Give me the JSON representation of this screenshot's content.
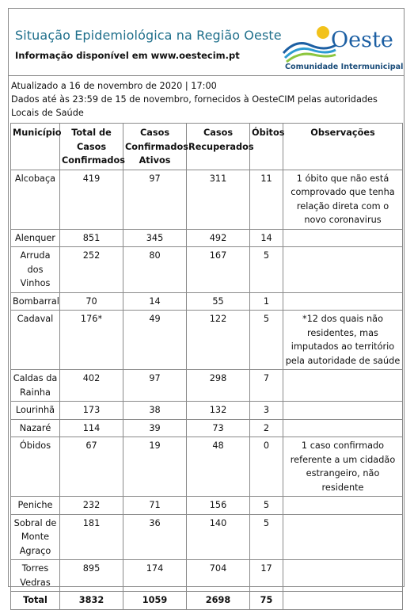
{
  "header": {
    "title": "Situação Epidemiológica na Região Oeste",
    "subtitle": "Informação disponível em www.oestecim.pt",
    "logo_name": "Oeste",
    "logo_sub": "Comunidade Intermunicipal",
    "logo_icon": "waves-sun-icon"
  },
  "info": {
    "updated": "Atualizado a 16 de novembro de 2020 | 17:00",
    "source": "Dados até às 23:59 de 15 de novembro, fornecidos à OesteCIM pelas autoridades Locais de Saúde"
  },
  "columns": {
    "municipio": "Município",
    "total": "Total de Casos Confirmados",
    "ativos": "Casos Confirmados Ativos",
    "recuperados": "Casos Recuperados",
    "obitos": "Óbitos",
    "observacoes": "Observações"
  },
  "rows": [
    {
      "municipio": "Alcobaça",
      "total": "419",
      "ativos": "97",
      "recuperados": "311",
      "obitos": "11",
      "obs": "1 óbito que não está comprovado que tenha relação direta com o novo coronavirus"
    },
    {
      "municipio": "Alenquer",
      "total": "851",
      "ativos": "345",
      "recuperados": "492",
      "obitos": "14",
      "obs": ""
    },
    {
      "municipio": "Arruda dos Vinhos",
      "total": "252",
      "ativos": "80",
      "recuperados": "167",
      "obitos": "5",
      "obs": ""
    },
    {
      "municipio": "Bombarral",
      "total": "70",
      "ativos": "14",
      "recuperados": "55",
      "obitos": "1",
      "obs": ""
    },
    {
      "municipio": "Cadaval",
      "total": "176*",
      "ativos": "49",
      "recuperados": "122",
      "obitos": "5",
      "obs": "*12 dos quais não residentes, mas imputados ao território pela autoridade de saúde"
    },
    {
      "municipio": "Caldas da Rainha",
      "total": "402",
      "ativos": "97",
      "recuperados": "298",
      "obitos": "7",
      "obs": ""
    },
    {
      "municipio": "Lourinhã",
      "total": "173",
      "ativos": "38",
      "recuperados": "132",
      "obitos": "3",
      "obs": ""
    },
    {
      "municipio": "Nazaré",
      "total": "114",
      "ativos": "39",
      "recuperados": "73",
      "obitos": "2",
      "obs": ""
    },
    {
      "municipio": "Óbidos",
      "total": "67",
      "ativos": "19",
      "recuperados": "48",
      "obitos": "0",
      "obs": "1 caso confirmado referente a um cidadão estrangeiro, não residente"
    },
    {
      "municipio": "Peniche",
      "total": "232",
      "ativos": "71",
      "recuperados": "156",
      "obitos": "5",
      "obs": ""
    },
    {
      "municipio": "Sobral de Monte Agraço",
      "total": "181",
      "ativos": "36",
      "recuperados": "140",
      "obitos": "5",
      "obs": ""
    },
    {
      "municipio": "Torres Vedras",
      "total": "895",
      "ativos": "174",
      "recuperados": "704",
      "obitos": "17",
      "obs": ""
    }
  ],
  "total": {
    "label": "Total",
    "total": "3832",
    "ativos": "1059",
    "recuperados": "2698",
    "obitos": "75",
    "obs": ""
  }
}
